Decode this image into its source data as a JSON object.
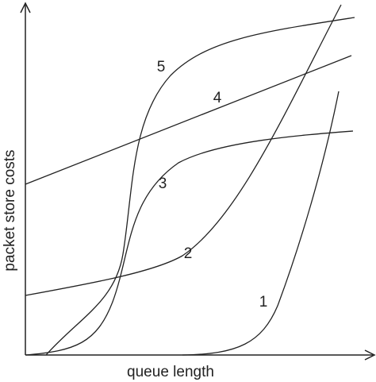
{
  "axes": {
    "x_label": "queue length",
    "y_label": "packet store costs"
  },
  "curves": [
    {
      "label": "1"
    },
    {
      "label": "2"
    },
    {
      "label": "3"
    },
    {
      "label": "4"
    },
    {
      "label": "5"
    }
  ]
}
